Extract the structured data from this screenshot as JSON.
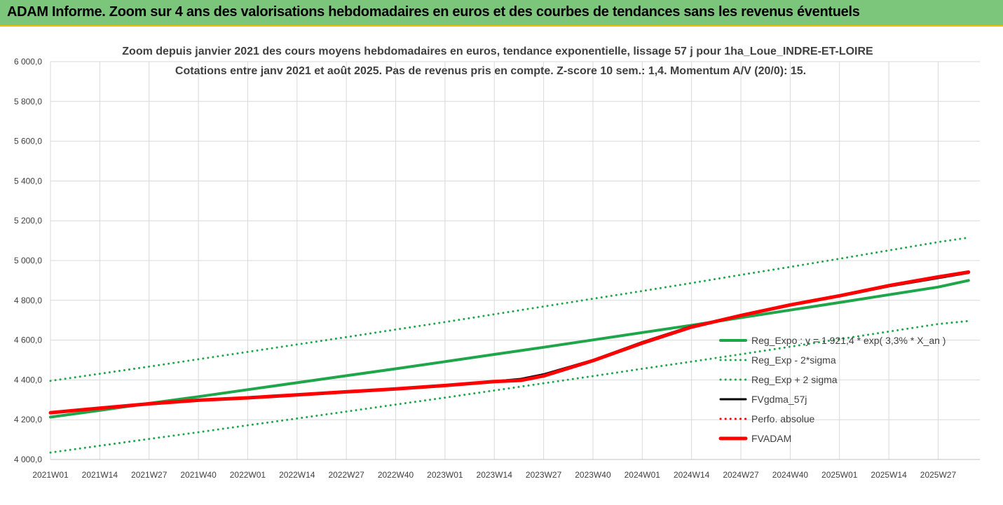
{
  "banner": {
    "title": "ADAM Informe. Zoom sur 4 ans des valorisations hebdomadaires en euros et des courbes de tendances sans les revenus éventuels",
    "color": "#7cc67c"
  },
  "chart_data": {
    "type": "line",
    "title": "Zoom depuis janvier 2021 des cours moyens hebdomadaires en euros, tendance exponentielle, lissage 57 j pour 1ha_Loue_INDRE-ET-LOIRE",
    "subtitle": "Cotations entre janv 2021 et août 2025. Pas de revenus pris en compte. Z-score 10 sem.: 1,4. Momentum A/V (20/0): 15.",
    "xlabel": "",
    "ylabel": "",
    "ylim": [
      4000,
      6000
    ],
    "y_ticks": [
      "4 000,0",
      "4 200,0",
      "4 400,0",
      "4 600,0",
      "4 800,0",
      "5 000,0",
      "5 200,0",
      "5 400,0",
      "5 600,0",
      "5 800,0",
      "6 000,0"
    ],
    "x_ticks": [
      "2021W01",
      "2021W14",
      "2021W27",
      "2021W40",
      "2022W01",
      "2022W14",
      "2022W27",
      "2022W40",
      "2023W01",
      "2023W14",
      "2023W27",
      "2023W40",
      "2024W01",
      "2024W14",
      "2024W27",
      "2024W40",
      "2025W01",
      "2025W14",
      "2025W27"
    ],
    "grid": true,
    "legend_position": "right",
    "series": [
      {
        "name": "Reg_Expo : y = 1 921,4 * exp( 3,3% *  X_an )",
        "color": "#1fa64a",
        "style": "solid",
        "width": 4,
        "x": [
          0,
          13,
          26,
          39,
          52,
          65,
          78,
          91,
          104,
          117,
          130,
          143,
          156,
          169,
          182,
          195,
          208,
          221,
          234,
          242
        ],
        "y": [
          4213,
          4247,
          4282,
          4316,
          4351,
          4386,
          4421,
          4456,
          4492,
          4528,
          4564,
          4601,
          4638,
          4675,
          4713,
          4751,
          4789,
          4828,
          4867,
          4900
        ]
      },
      {
        "name": "Reg_Exp - 2*sigma",
        "color": "#1fa64a",
        "style": "dotted",
        "width": 3,
        "x": [
          0,
          13,
          26,
          39,
          52,
          65,
          78,
          91,
          104,
          117,
          130,
          143,
          156,
          169,
          182,
          195,
          208,
          221,
          234,
          242
        ],
        "y": [
          4035,
          4069,
          4103,
          4137,
          4172,
          4206,
          4241,
          4276,
          4311,
          4347,
          4383,
          4419,
          4456,
          4492,
          4529,
          4567,
          4605,
          4643,
          4681,
          4696
        ]
      },
      {
        "name": "Reg_Exp + 2 sigma",
        "color": "#1fa64a",
        "style": "dotted",
        "width": 3,
        "x": [
          0,
          13,
          26,
          39,
          52,
          65,
          78,
          91,
          104,
          117,
          130,
          143,
          156,
          169,
          182,
          195,
          208,
          221,
          234,
          242
        ],
        "y": [
          4395,
          4431,
          4467,
          4504,
          4541,
          4578,
          4615,
          4653,
          4691,
          4730,
          4769,
          4808,
          4847,
          4887,
          4928,
          4968,
          5009,
          5051,
          5093,
          5115
        ]
      },
      {
        "name": "FVgdma_57j",
        "color": "#000000",
        "style": "solid",
        "width": 3,
        "x": [
          0,
          13,
          26,
          39,
          52,
          65,
          78,
          91,
          104,
          117,
          124,
          130,
          143,
          156,
          169,
          182,
          195,
          208,
          221,
          234,
          242
        ],
        "y": [
          4235,
          4258,
          4280,
          4298,
          4310,
          4325,
          4340,
          4355,
          4373,
          4393,
          4405,
          4428,
          4500,
          4590,
          4670,
          4722,
          4775,
          4820,
          4870,
          4912,
          4938
        ]
      },
      {
        "name": "Perfo. absolue",
        "color": "#ff0000",
        "style": "dotted",
        "width": 3,
        "x": [
          0,
          13,
          26,
          39,
          52,
          65,
          78,
          91,
          104,
          117,
          124,
          130,
          143,
          156,
          169,
          182,
          195,
          208,
          221,
          234,
          242
        ],
        "y": [
          4235,
          4258,
          4280,
          4298,
          4310,
          4325,
          4340,
          4355,
          4372,
          4392,
          4398,
          4420,
          4497,
          4585,
          4666,
          4724,
          4777,
          4823,
          4874,
          4918,
          4942
        ]
      },
      {
        "name": "FVADAM",
        "color": "#ff0000",
        "style": "solid",
        "width": 5,
        "x": [
          0,
          13,
          26,
          39,
          52,
          65,
          78,
          91,
          104,
          117,
          124,
          130,
          143,
          156,
          169,
          182,
          195,
          208,
          221,
          234,
          242
        ],
        "y": [
          4235,
          4258,
          4280,
          4298,
          4310,
          4325,
          4340,
          4355,
          4372,
          4392,
          4398,
          4420,
          4497,
          4585,
          4666,
          4724,
          4777,
          4823,
          4874,
          4918,
          4942
        ]
      }
    ]
  }
}
